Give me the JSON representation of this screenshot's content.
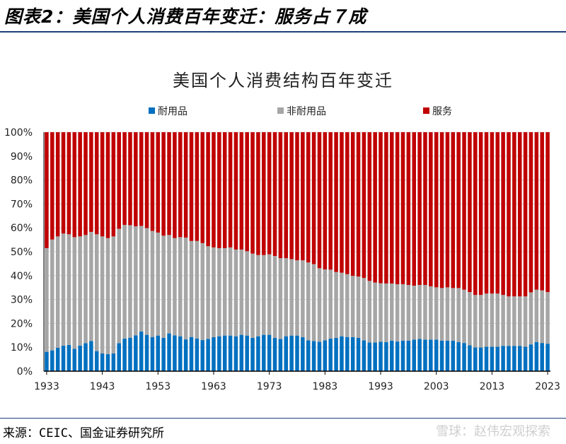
{
  "header": {
    "title": "图表2：美国个人消费百年变迁：服务占７成"
  },
  "footer": {
    "source": "来源：CEIC、国金证券研究所",
    "watermark": "雪球：赵伟宏观探索"
  },
  "chart_data": {
    "type": "bar",
    "stacked": true,
    "percent": true,
    "title": "美国个人消费结构百年变迁",
    "xlabel": "",
    "ylabel": "",
    "ylim": [
      0,
      100
    ],
    "yticks": [
      "0%",
      "10%",
      "20%",
      "30%",
      "40%",
      "50%",
      "60%",
      "70%",
      "80%",
      "90%",
      "100%"
    ],
    "xticks": [
      "1933",
      "1943",
      "1953",
      "1963",
      "1973",
      "1983",
      "1993",
      "2003",
      "2013",
      "2023"
    ],
    "legend_position": "top",
    "grid": true,
    "categories": [
      1933,
      1934,
      1935,
      1936,
      1937,
      1938,
      1939,
      1940,
      1941,
      1942,
      1943,
      1944,
      1945,
      1946,
      1947,
      1948,
      1949,
      1950,
      1951,
      1952,
      1953,
      1954,
      1955,
      1956,
      1957,
      1958,
      1959,
      1960,
      1961,
      1962,
      1963,
      1964,
      1965,
      1966,
      1967,
      1968,
      1969,
      1970,
      1971,
      1972,
      1973,
      1974,
      1975,
      1976,
      1977,
      1978,
      1979,
      1980,
      1981,
      1982,
      1983,
      1984,
      1985,
      1986,
      1987,
      1988,
      1989,
      1990,
      1991,
      1992,
      1993,
      1994,
      1995,
      1996,
      1997,
      1998,
      1999,
      2000,
      2001,
      2002,
      2003,
      2004,
      2005,
      2006,
      2007,
      2008,
      2009,
      2010,
      2011,
      2012,
      2013,
      2014,
      2015,
      2016,
      2017,
      2018,
      2019,
      2020,
      2021,
      2022,
      2023
    ],
    "series": [
      {
        "name": "耐用品",
        "color": "#0070C0",
        "values": [
          8.1,
          8.7,
          9.8,
          10.7,
          11.0,
          9.4,
          10.7,
          11.7,
          12.6,
          8.4,
          7.4,
          7.1,
          7.4,
          11.7,
          13.6,
          14.0,
          15.0,
          16.6,
          15.2,
          14.3,
          14.9,
          13.9,
          15.8,
          15.0,
          14.6,
          13.3,
          14.3,
          13.7,
          13.0,
          13.5,
          14.2,
          14.6,
          14.9,
          14.9,
          14.6,
          15.2,
          14.9,
          13.9,
          14.6,
          15.2,
          15.2,
          13.9,
          13.5,
          14.6,
          14.9,
          14.9,
          14.2,
          12.9,
          12.6,
          12.3,
          12.9,
          13.6,
          13.9,
          14.6,
          14.3,
          14.2,
          13.9,
          12.9,
          12.0,
          12.0,
          12.3,
          12.2,
          12.8,
          12.4,
          12.8,
          12.8,
          13.2,
          13.5,
          13.2,
          13.2,
          13.2,
          12.8,
          12.8,
          12.8,
          12.2,
          11.8,
          10.8,
          9.9,
          9.9,
          10.2,
          10.2,
          10.2,
          10.6,
          10.6,
          10.6,
          10.6,
          10.2,
          11.2,
          12.2,
          11.8,
          11.5
        ]
      },
      {
        "name": "非耐用品",
        "color": "#A6A6A6",
        "values": [
          43.4,
          46.4,
          46.6,
          46.9,
          46.3,
          46.7,
          45.7,
          45.3,
          45.7,
          48.9,
          49.0,
          48.6,
          49.0,
          47.9,
          47.6,
          47.1,
          45.6,
          44.2,
          44.7,
          44.4,
          43.1,
          42.8,
          41.2,
          40.7,
          41.5,
          42.6,
          40.2,
          40.8,
          40.6,
          38.8,
          37.6,
          36.9,
          36.6,
          36.9,
          36.3,
          35.7,
          35.3,
          35.3,
          34.0,
          33.4,
          33.7,
          34.3,
          33.8,
          32.7,
          32.0,
          31.5,
          32.2,
          32.6,
          32.2,
          30.8,
          29.7,
          28.9,
          27.6,
          26.6,
          26.3,
          25.7,
          25.7,
          26.1,
          25.8,
          25.1,
          24.5,
          24.5,
          23.9,
          24.0,
          23.6,
          23.3,
          22.6,
          22.6,
          22.9,
          22.3,
          21.9,
          22.0,
          22.3,
          22.0,
          22.6,
          22.3,
          22.3,
          22.0,
          22.0,
          22.3,
          22.3,
          22.3,
          21.3,
          20.7,
          20.7,
          20.7,
          21.1,
          21.8,
          21.9,
          22.0,
          21.6
        ]
      },
      {
        "name": "服务",
        "color": "#C00000",
        "values": [
          48.5,
          44.9,
          43.6,
          42.4,
          42.7,
          43.9,
          43.6,
          43.0,
          41.7,
          42.7,
          43.6,
          44.3,
          43.6,
          40.4,
          38.8,
          38.9,
          39.4,
          39.2,
          40.1,
          41.3,
          42.0,
          43.3,
          43.0,
          44.3,
          43.9,
          44.1,
          45.5,
          45.5,
          46.4,
          47.7,
          48.2,
          48.5,
          48.5,
          48.2,
          49.1,
          49.1,
          49.8,
          50.8,
          51.4,
          51.4,
          51.1,
          51.8,
          52.7,
          52.7,
          53.1,
          53.6,
          53.6,
          54.5,
          55.2,
          56.9,
          57.4,
          57.5,
          58.5,
          58.8,
          59.4,
          60.1,
          60.4,
          61.0,
          62.2,
          62.9,
          63.2,
          63.3,
          63.3,
          63.6,
          63.6,
          63.9,
          64.2,
          63.9,
          63.9,
          64.5,
          64.9,
          65.2,
          64.9,
          65.2,
          65.2,
          65.9,
          66.9,
          68.1,
          68.1,
          67.5,
          67.5,
          67.5,
          68.1,
          68.7,
          68.7,
          68.7,
          68.7,
          67.0,
          65.9,
          66.2,
          66.9
        ]
      }
    ]
  }
}
